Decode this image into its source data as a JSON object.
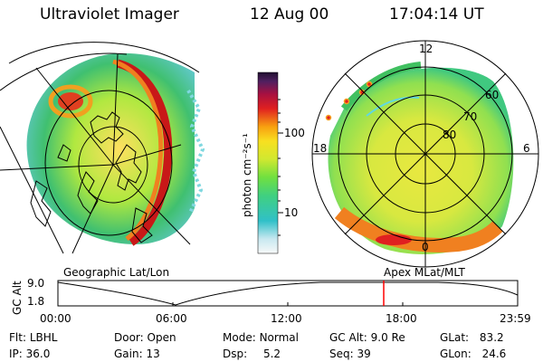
{
  "header": {
    "instrument": "Ultraviolet Imager",
    "date": "12 Aug 00",
    "time": "17:04:14 UT"
  },
  "colorbar": {
    "unit_label": "photon cm⁻²s⁻¹",
    "ticks": [
      "100",
      "10"
    ]
  },
  "geographic_panel": {
    "label": "Geographic Lat/Lon"
  },
  "polar_panel": {
    "label": "Apex MLat/MLT",
    "mlt_labels": {
      "top": "12",
      "left": "18",
      "right": "6",
      "bottom": "0"
    },
    "lat_labels": [
      "60",
      "70",
      "80"
    ]
  },
  "altitude_plot": {
    "ylabel": "GC Alt",
    "y_ticks": [
      "9.0",
      "1.8"
    ],
    "x_ticks": [
      "00:00",
      "06:00",
      "12:00",
      "18:00",
      "23:59"
    ],
    "current_time_marker": "17:04"
  },
  "status": {
    "flt": {
      "label": "Flt:",
      "value": "LBHL"
    },
    "ip": {
      "label": "IP:",
      "value": "36.0"
    },
    "door": {
      "label": "Door:",
      "value": "Open"
    },
    "gain": {
      "label": "Gain:",
      "value": "13"
    },
    "mode": {
      "label": "Mode:",
      "value": "Normal"
    },
    "dsp": {
      "label": "Dsp:",
      "value": "5.2"
    },
    "gcalt": {
      "label": "GC Alt:",
      "value": "9.0 Re"
    },
    "seq": {
      "label": "Seq:",
      "value": "39"
    },
    "glat": {
      "label": "GLat:",
      "value": "83.2"
    },
    "glon": {
      "label": "GLon:",
      "value": "24.6"
    }
  },
  "colors": {
    "marker": "#ff0000",
    "aurora_hot": "#d01010",
    "aurora_mid": "#f0a020",
    "aurora_low": "#a0e030",
    "background_glow": "#40c060"
  }
}
